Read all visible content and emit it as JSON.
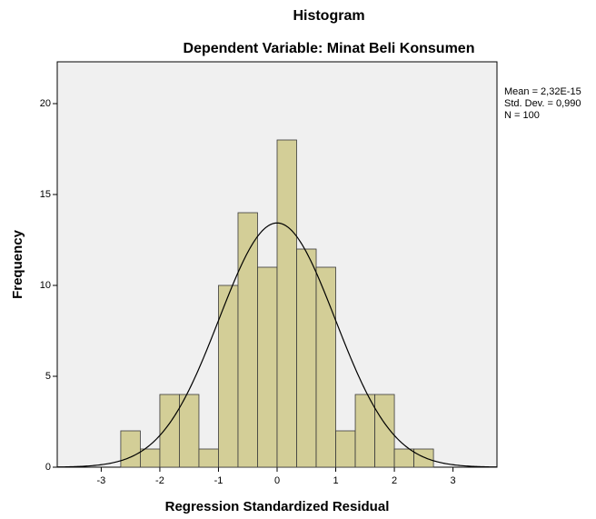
{
  "chart_data": {
    "type": "histogram",
    "title": "Histogram",
    "subtitle": "Dependent Variable: Minat Beli Konsumen",
    "x_label": "Regression Standardized Residual",
    "y_label": "Frequency",
    "bins": [
      -2.6667,
      -2.3333,
      -2,
      -1.6667,
      -1.3333,
      -1,
      -0.6667,
      -0.3333,
      0,
      0.3333,
      0.6667,
      1,
      1.3333,
      1.6667,
      2,
      2.3333,
      2.6667
    ],
    "values": [
      2,
      1,
      4,
      4,
      1,
      10,
      14,
      11,
      18,
      12,
      11,
      2,
      4,
      4,
      1,
      1
    ],
    "color": "#d3ce97",
    "xlim": [
      -3.75,
      3.75
    ],
    "xticks": [
      -3,
      -2,
      -1,
      0,
      1,
      2,
      3
    ],
    "ylim": [
      0,
      22.3
    ],
    "yticks": [
      0,
      5,
      10,
      15,
      20
    ],
    "normal": {
      "mean": {
        "value": 2.32e-15,
        "label": "Mean = 2,32E-15"
      },
      "sd": {
        "value": 0.99,
        "label": "Std. Dev. = 0,990"
      },
      "n": {
        "value": 100,
        "label": "N = 100"
      }
    }
  }
}
